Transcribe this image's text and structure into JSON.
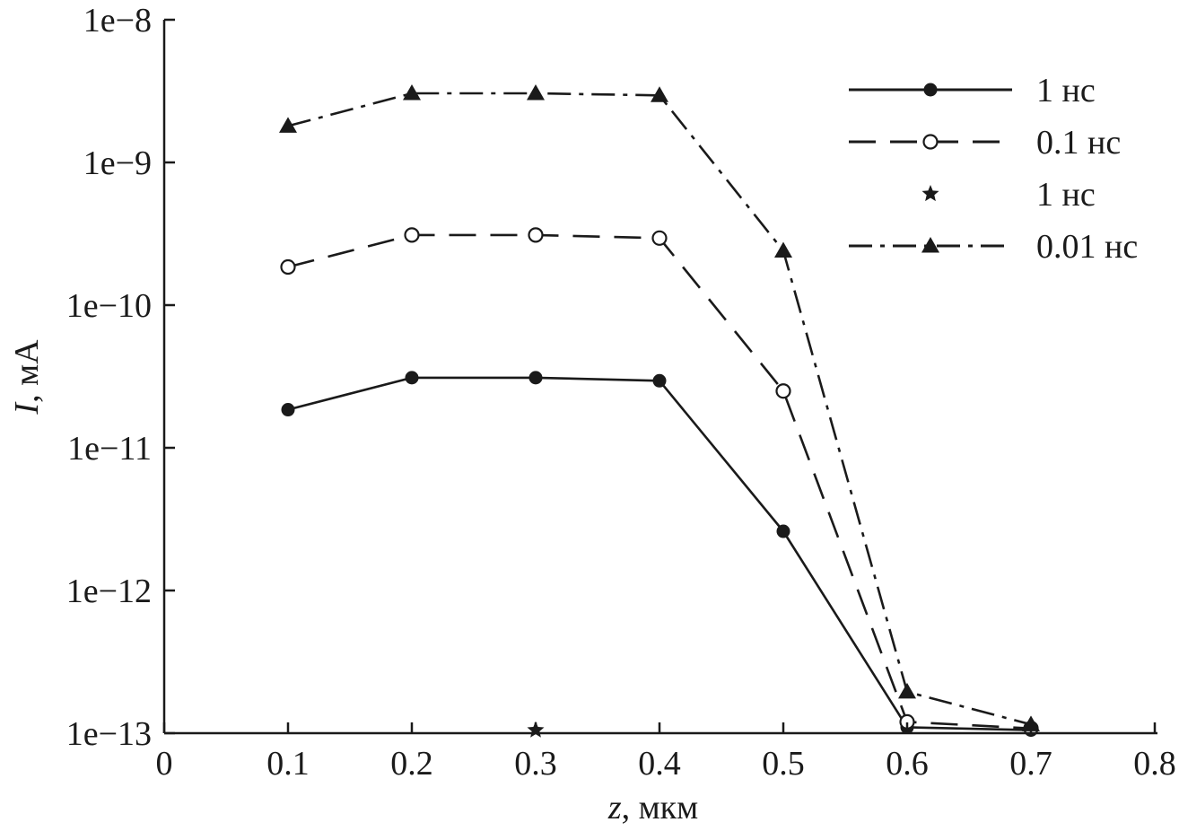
{
  "chart_data": {
    "type": "line",
    "title": "",
    "xlabel": "z",
    "xlabel_unit": ", мкм",
    "ylabel": "I",
    "ylabel_unit": ", мА",
    "xlim": [
      0,
      0.8
    ],
    "ylim": [
      1e-13,
      1e-08
    ],
    "yscale": "log",
    "grid": false,
    "legend_position": "top-right",
    "x_ticks": [
      0,
      0.1,
      0.2,
      0.3,
      0.4,
      0.5,
      0.6,
      0.7,
      0.8
    ],
    "x_tick_labels": [
      "0",
      "0.1",
      "0.2",
      "0.3",
      "0.4",
      "0.5",
      "0.6",
      "0.7",
      "0.8"
    ],
    "y_ticks": [
      1e-13,
      1e-12,
      1e-11,
      1e-10,
      1e-09,
      1e-08
    ],
    "y_tick_labels": [
      "1e−13",
      "1e−12",
      "1e−11",
      "1e−10",
      "1e−9",
      "1e−8"
    ],
    "series": [
      {
        "name": "1 нс",
        "line": "solid",
        "marker": "filled-circle",
        "x": [
          0.1,
          0.2,
          0.3,
          0.4,
          0.5,
          0.6,
          0.7
        ],
        "y": [
          1.85e-11,
          3.1e-11,
          3.1e-11,
          2.95e-11,
          2.6e-12,
          1.1e-13,
          1.05e-13
        ]
      },
      {
        "name": "0.1 нс",
        "line": "dashed",
        "marker": "open-circle",
        "x": [
          0.1,
          0.2,
          0.3,
          0.4,
          0.5,
          0.6,
          0.7
        ],
        "y": [
          1.85e-10,
          3.1e-10,
          3.1e-10,
          2.95e-10,
          2.5e-11,
          1.2e-13,
          1.08e-13
        ]
      },
      {
        "name": "1 нс",
        "line": "none",
        "marker": "star",
        "x": [
          0.3
        ],
        "y": [
          1.05e-13
        ]
      },
      {
        "name": "0.01 нс",
        "line": "dashdot",
        "marker": "filled-triangle",
        "x": [
          0.1,
          0.2,
          0.3,
          0.4,
          0.5,
          0.6,
          0.7
        ],
        "y": [
          1.8e-09,
          3.05e-09,
          3.05e-09,
          2.95e-09,
          2.4e-10,
          1.95e-13,
          1.15e-13
        ]
      }
    ]
  }
}
